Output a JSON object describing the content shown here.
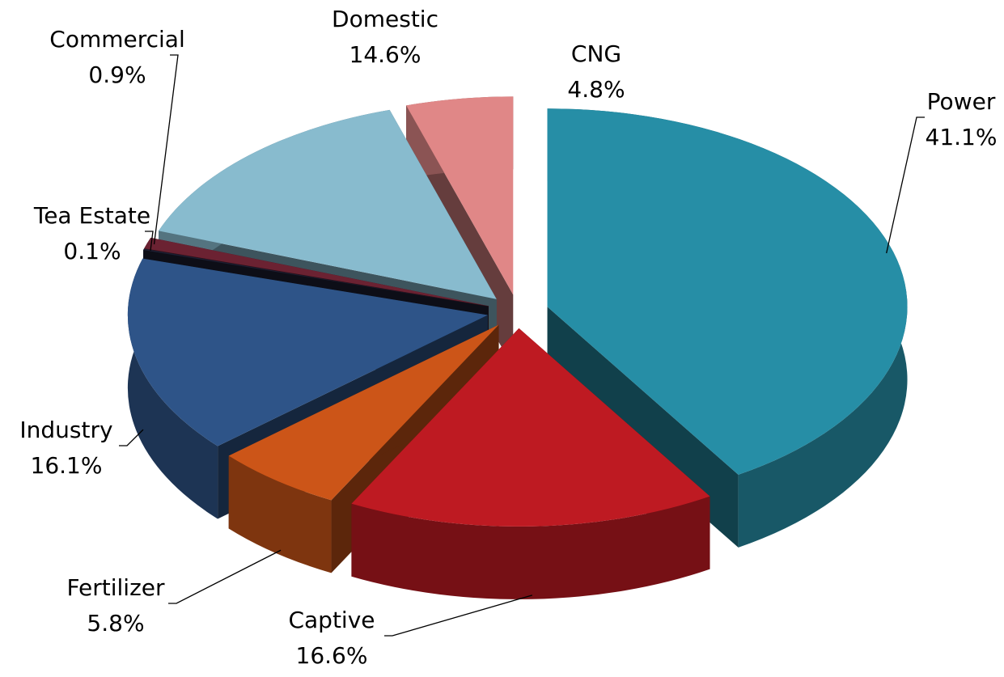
{
  "chart_data": {
    "type": "pie3d",
    "categories": [
      "Power",
      "Captive",
      "Fertilizer",
      "Industry",
      "Tea Estate",
      "Commercial",
      "Domestic",
      "CNG"
    ],
    "values": [
      41.1,
      16.6,
      5.8,
      16.1,
      0.1,
      0.9,
      14.6,
      4.8
    ],
    "value_labels": [
      "41.1%",
      "16.6%",
      "5.8%",
      "16.1%",
      "0.1%",
      "0.9%",
      "14.6%",
      "4.8%"
    ],
    "colors": [
      "#268ea6",
      "#be1a22",
      "#cc5518",
      "#2e5488",
      "#1c1f33",
      "#6b2232",
      "#88bbce",
      "#e08787"
    ]
  }
}
